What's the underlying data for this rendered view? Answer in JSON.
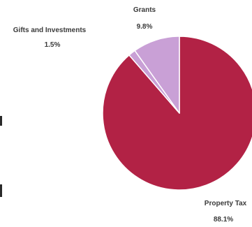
{
  "chart_data": {
    "type": "pie",
    "slices": [
      {
        "name": "Property Tax",
        "percent_label": "88.1%",
        "value": 88.1,
        "color": "#b22245"
      },
      {
        "name": "Grants",
        "percent_label": "9.8%",
        "value": 9.8,
        "color": "#c9a0d6"
      },
      {
        "name": "Gifts and Investments",
        "percent_label": "1.5%",
        "value": 1.5,
        "color": "#c9a0d6"
      }
    ],
    "slice_border_color": "#ffffff",
    "title": "",
    "legend": "none"
  }
}
